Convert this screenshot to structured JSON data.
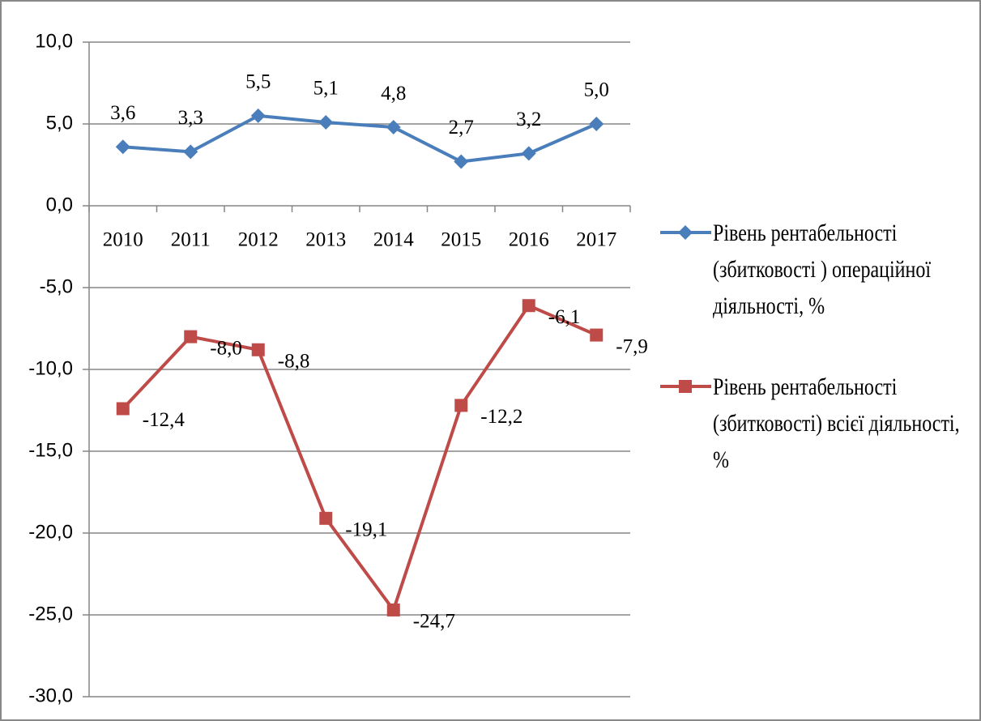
{
  "chart_data": {
    "type": "line",
    "categories": [
      "2010",
      "2011",
      "2012",
      "2013",
      "2014",
      "2015",
      "2016",
      "2017"
    ],
    "series": [
      {
        "name": "Рівень рентабельності (збитковості ) операційної діяльності, %",
        "color": "#4a7ebb",
        "marker": "diamond",
        "values": [
          3.6,
          3.3,
          5.5,
          5.1,
          4.8,
          2.7,
          3.2,
          5.0
        ],
        "value_labels": [
          "3,6",
          "3,3",
          "5,5",
          "5,1",
          "4,8",
          "2,7",
          "3,2",
          "5,0"
        ]
      },
      {
        "name": "Рівень рентабельності (збитковості) всієї діяльності, %",
        "color": "#be4b48",
        "marker": "square",
        "values": [
          -12.4,
          -8.0,
          -8.8,
          -19.1,
          -24.7,
          -12.2,
          -6.1,
          -7.9
        ],
        "value_labels": [
          "-12,4",
          "-8,0",
          "-8,8",
          "-19,1",
          "-24,7",
          "-12,2",
          "-6,1",
          "-7,9"
        ]
      }
    ],
    "ylim": [
      -30,
      10
    ],
    "yticks": [
      {
        "value": -30,
        "label": "-30,0"
      },
      {
        "value": -25,
        "label": "-25,0"
      },
      {
        "value": -20,
        "label": "-20,0"
      },
      {
        "value": -15,
        "label": "-15,0"
      },
      {
        "value": -10,
        "label": "-10,0"
      },
      {
        "value": -5,
        "label": "-5,0"
      },
      {
        "value": 0,
        "label": "0,0"
      },
      {
        "value": 5,
        "label": "5,0"
      },
      {
        "value": 10,
        "label": "10,0"
      }
    ],
    "grid": true,
    "legend": "right"
  }
}
